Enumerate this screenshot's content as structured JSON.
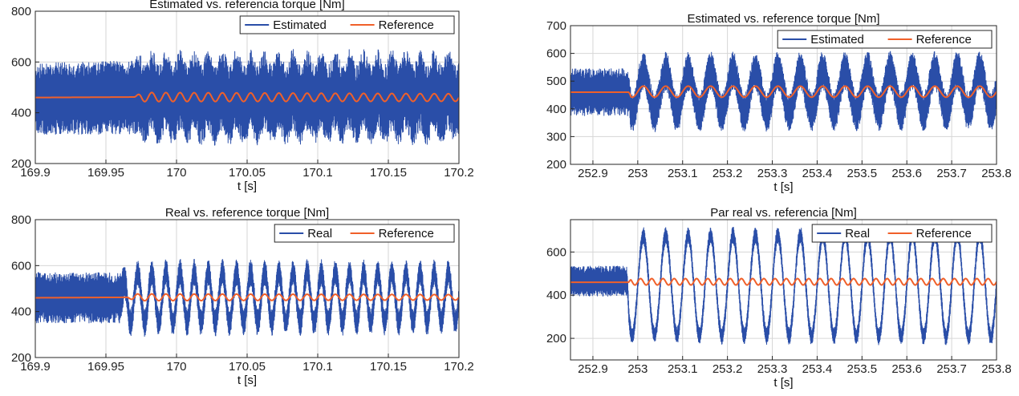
{
  "colors": {
    "estimated": "#2a4ea8",
    "real": "#2a4ea8",
    "reference": "#f0602a"
  },
  "chart_data": [
    {
      "type": "line",
      "title": "Estimated vs. referencia torque [Nm]",
      "xlabel": "t [s]",
      "ylabel": "",
      "xlim": [
        169.9,
        170.2
      ],
      "ylim": [
        200,
        800
      ],
      "xticks": [
        169.9,
        169.95,
        170,
        170.05,
        170.1,
        170.15,
        170.2
      ],
      "xtick_labels": [
        "169.9",
        "169.95",
        "170",
        "170.05",
        "170.1",
        "170.15",
        "170.2"
      ],
      "yticks": [
        200,
        400,
        600,
        800
      ],
      "ytick_labels": [
        "200",
        "400",
        "600",
        "800"
      ],
      "grid": true,
      "legend": "top-right",
      "series": [
        {
          "name": "Estimated",
          "color": "#2a4ea8",
          "kind": "band",
          "x": [
            169.9,
            169.97,
            169.975,
            170.2
          ],
          "center": [
            455,
            460,
            460,
            460
          ],
          "amp": [
            140,
            145,
            160,
            160
          ],
          "osc_amp": [
            0,
            0,
            30,
            30
          ],
          "osc_freq_hz": 100
        },
        {
          "name": "Reference",
          "color": "#f0602a",
          "kind": "ref",
          "x": [
            169.9,
            169.97,
            169.975,
            170.2
          ],
          "center": [
            460,
            462,
            462,
            460
          ],
          "osc_amp": [
            0,
            0,
            18,
            15
          ],
          "osc_freq_hz": 100
        }
      ]
    },
    {
      "type": "line",
      "title": "Estimated vs. reference torque [Nm]",
      "xlabel": "t [s]",
      "ylabel": "",
      "xlim": [
        252.85,
        253.8
      ],
      "ylim": [
        200,
        700
      ],
      "xticks": [
        252.9,
        253,
        253.1,
        253.2,
        253.3,
        253.4,
        253.5,
        253.6,
        253.7,
        253.8
      ],
      "xtick_labels": [
        "252.9",
        "253",
        "253.1",
        "253.2",
        "253.3",
        "253.4",
        "253.5",
        "253.6",
        "253.7",
        "253.8"
      ],
      "yticks": [
        200,
        300,
        400,
        500,
        600,
        700
      ],
      "ytick_labels": [
        "200",
        "300",
        "400",
        "500",
        "600",
        "700"
      ],
      "grid": true,
      "legend": "top-right",
      "series": [
        {
          "name": "Estimated",
          "color": "#2a4ea8",
          "kind": "band",
          "x": [
            252.85,
            252.98,
            252.985,
            253.8
          ],
          "center": [
            460,
            460,
            460,
            465
          ],
          "amp": [
            85,
            85,
            70,
            70
          ],
          "osc_amp": [
            0,
            0,
            75,
            75
          ],
          "osc_freq_hz": 20
        },
        {
          "name": "Reference",
          "color": "#f0602a",
          "kind": "ref",
          "x": [
            252.85,
            252.98,
            252.985,
            253.8
          ],
          "center": [
            460,
            460,
            462,
            462
          ],
          "osc_amp": [
            0,
            0,
            20,
            20
          ],
          "osc_freq_hz": 20
        }
      ]
    },
    {
      "type": "line",
      "title": "Real vs. reference torque [Nm]",
      "xlabel": "t [s]",
      "ylabel": "",
      "xlim": [
        169.9,
        170.2
      ],
      "ylim": [
        200,
        800
      ],
      "xticks": [
        169.9,
        169.95,
        170,
        170.05,
        170.1,
        170.15,
        170.2
      ],
      "xtick_labels": [
        "169.9",
        "169.95",
        "170",
        "170.05",
        "170.1",
        "170.15",
        "170.2"
      ],
      "yticks": [
        200,
        400,
        600,
        800
      ],
      "ytick_labels": [
        "200",
        "400",
        "600",
        "800"
      ],
      "grid": true,
      "legend": "top-right",
      "series": [
        {
          "name": "Real",
          "color": "#2a4ea8",
          "kind": "band",
          "x": [
            169.9,
            169.96,
            169.965,
            170.2
          ],
          "center": [
            460,
            460,
            460,
            462
          ],
          "amp": [
            110,
            110,
            60,
            55
          ],
          "osc_amp": [
            0,
            0,
            110,
            110
          ],
          "osc_freq_hz": 100
        },
        {
          "name": "Reference",
          "color": "#f0602a",
          "kind": "ref",
          "x": [
            169.9,
            169.965,
            169.97,
            170.2
          ],
          "center": [
            460,
            462,
            462,
            462
          ],
          "osc_amp": [
            0,
            0,
            15,
            12
          ],
          "osc_freq_hz": 100
        }
      ]
    },
    {
      "type": "line",
      "title": "Par real vs. referencia [Nm]",
      "xlabel": "t [s]",
      "ylabel": "",
      "xlim": [
        252.85,
        253.8
      ],
      "ylim": [
        100,
        750
      ],
      "xticks": [
        252.9,
        253,
        253.1,
        253.2,
        253.3,
        253.4,
        253.5,
        253.6,
        253.7,
        253.8
      ],
      "xtick_labels": [
        "252.9",
        "253",
        "253.1",
        "253.2",
        "253.3",
        "253.4",
        "253.5",
        "253.6",
        "253.7",
        "253.8"
      ],
      "yticks": [
        200,
        400,
        600
      ],
      "ytick_labels": [
        "200",
        "400",
        "600"
      ],
      "grid": true,
      "legend": "top-right",
      "series": [
        {
          "name": "Real",
          "color": "#2a4ea8",
          "kind": "band",
          "x": [
            252.85,
            252.975,
            252.98,
            253.8
          ],
          "center": [
            465,
            465,
            445,
            445
          ],
          "amp": [
            70,
            70,
            40,
            40
          ],
          "osc_amp": [
            0,
            0,
            230,
            240
          ],
          "osc_freq_hz": 20
        },
        {
          "name": "Reference",
          "color": "#f0602a",
          "kind": "ref",
          "x": [
            252.85,
            252.98,
            252.985,
            253.8
          ],
          "center": [
            460,
            460,
            462,
            462
          ],
          "osc_amp": [
            0,
            0,
            15,
            15
          ],
          "osc_freq_hz": 40
        }
      ]
    }
  ]
}
